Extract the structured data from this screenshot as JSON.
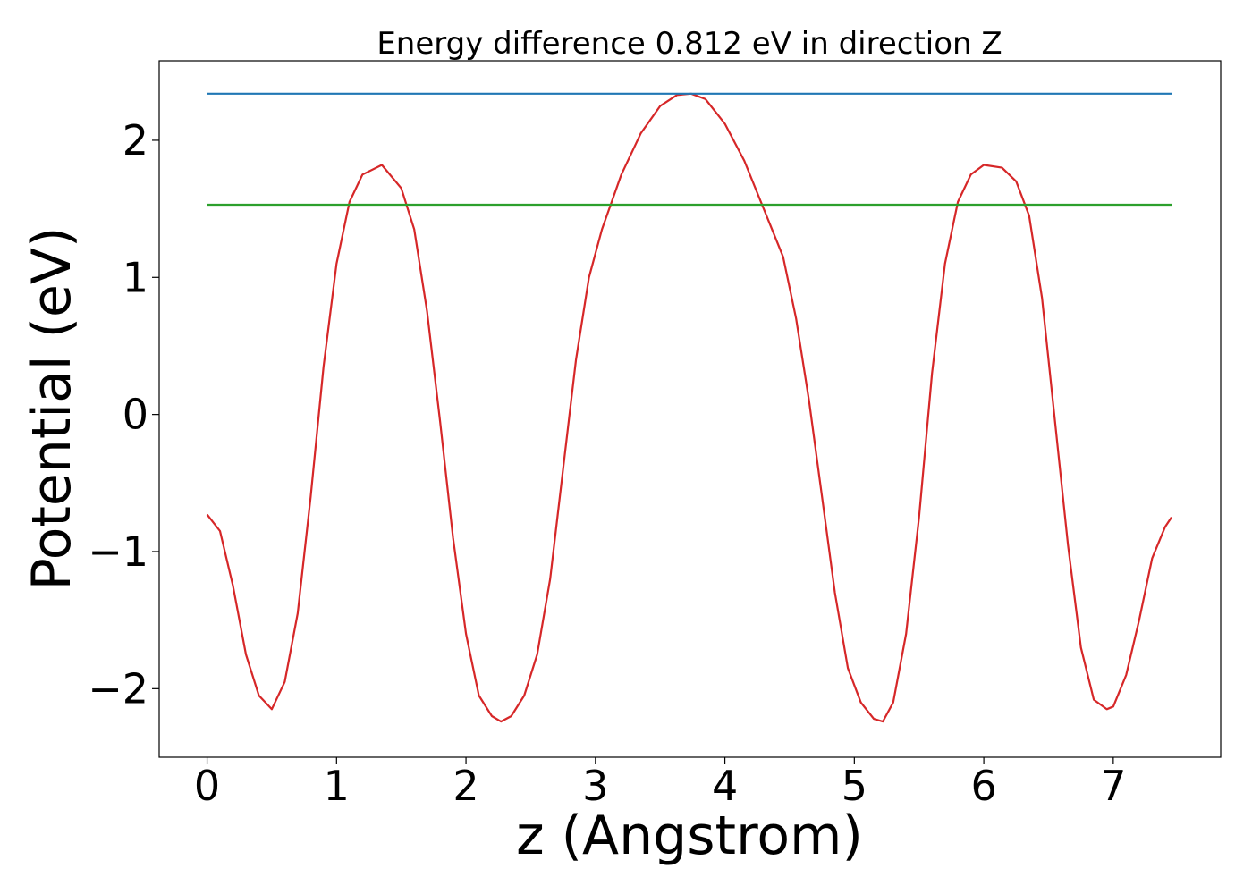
{
  "chart_data": {
    "type": "line",
    "title": "Energy difference 0.812 eV in direction Z",
    "xlabel": "z (Angstrom)",
    "ylabel": "Potential (eV)",
    "xlim": [
      -0.37,
      7.83
    ],
    "ylim": [
      -2.5,
      2.58
    ],
    "x_ticks": [
      0,
      1,
      2,
      3,
      4,
      5,
      6,
      7
    ],
    "x_tick_labels": [
      "0",
      "1",
      "2",
      "3",
      "4",
      "5",
      "6",
      "7"
    ],
    "y_ticks": [
      -2,
      -1,
      0,
      1,
      2
    ],
    "y_tick_labels": [
      "−2",
      "−1",
      "0",
      "1",
      "2"
    ],
    "grid": false,
    "series": [
      {
        "color": "#d62728",
        "x": [
          0,
          0.1,
          0.2,
          0.3,
          0.4,
          0.5,
          0.6,
          0.7,
          0.8,
          0.9,
          1.0,
          1.1,
          1.2,
          1.35,
          1.5,
          1.6,
          1.7,
          1.8,
          1.9,
          2.0,
          2.1,
          2.2,
          2.27,
          2.35,
          2.45,
          2.55,
          2.65,
          2.75,
          2.85,
          2.95,
          3.05,
          3.2,
          3.35,
          3.5,
          3.63,
          3.74,
          3.85,
          4.0,
          4.15,
          4.3,
          4.45,
          4.55,
          4.65,
          4.75,
          4.85,
          4.95,
          5.05,
          5.15,
          5.22,
          5.3,
          5.4,
          5.5,
          5.6,
          5.7,
          5.8,
          5.9,
          6.0,
          6.14,
          6.25,
          6.35,
          6.45,
          6.55,
          6.65,
          6.75,
          6.85,
          6.95,
          7.0,
          7.1,
          7.2,
          7.3,
          7.4,
          7.45
        ],
        "y": [
          -0.73,
          -0.85,
          -1.25,
          -1.75,
          -2.05,
          -2.15,
          -1.95,
          -1.45,
          -0.6,
          0.35,
          1.1,
          1.55,
          1.75,
          1.82,
          1.65,
          1.35,
          0.75,
          -0.05,
          -0.9,
          -1.6,
          -2.05,
          -2.2,
          -2.24,
          -2.2,
          -2.05,
          -1.75,
          -1.2,
          -0.4,
          0.4,
          1.0,
          1.35,
          1.75,
          2.05,
          2.25,
          2.33,
          2.34,
          2.3,
          2.12,
          1.85,
          1.5,
          1.15,
          0.7,
          0.1,
          -0.6,
          -1.3,
          -1.85,
          -2.1,
          -2.22,
          -2.24,
          -2.1,
          -1.6,
          -0.75,
          0.3,
          1.1,
          1.55,
          1.75,
          1.82,
          1.8,
          1.7,
          1.45,
          0.85,
          -0.05,
          -0.95,
          -1.7,
          -2.08,
          -2.15,
          -2.13,
          -1.9,
          -1.5,
          -1.05,
          -0.82,
          -0.75
        ]
      },
      {
        "color": "#1f77b4",
        "x": [
          0,
          7.45
        ],
        "y": [
          2.34,
          2.34
        ]
      },
      {
        "color": "#2ca02c",
        "x": [
          0,
          7.45
        ],
        "y": [
          1.53,
          1.53
        ]
      }
    ]
  }
}
